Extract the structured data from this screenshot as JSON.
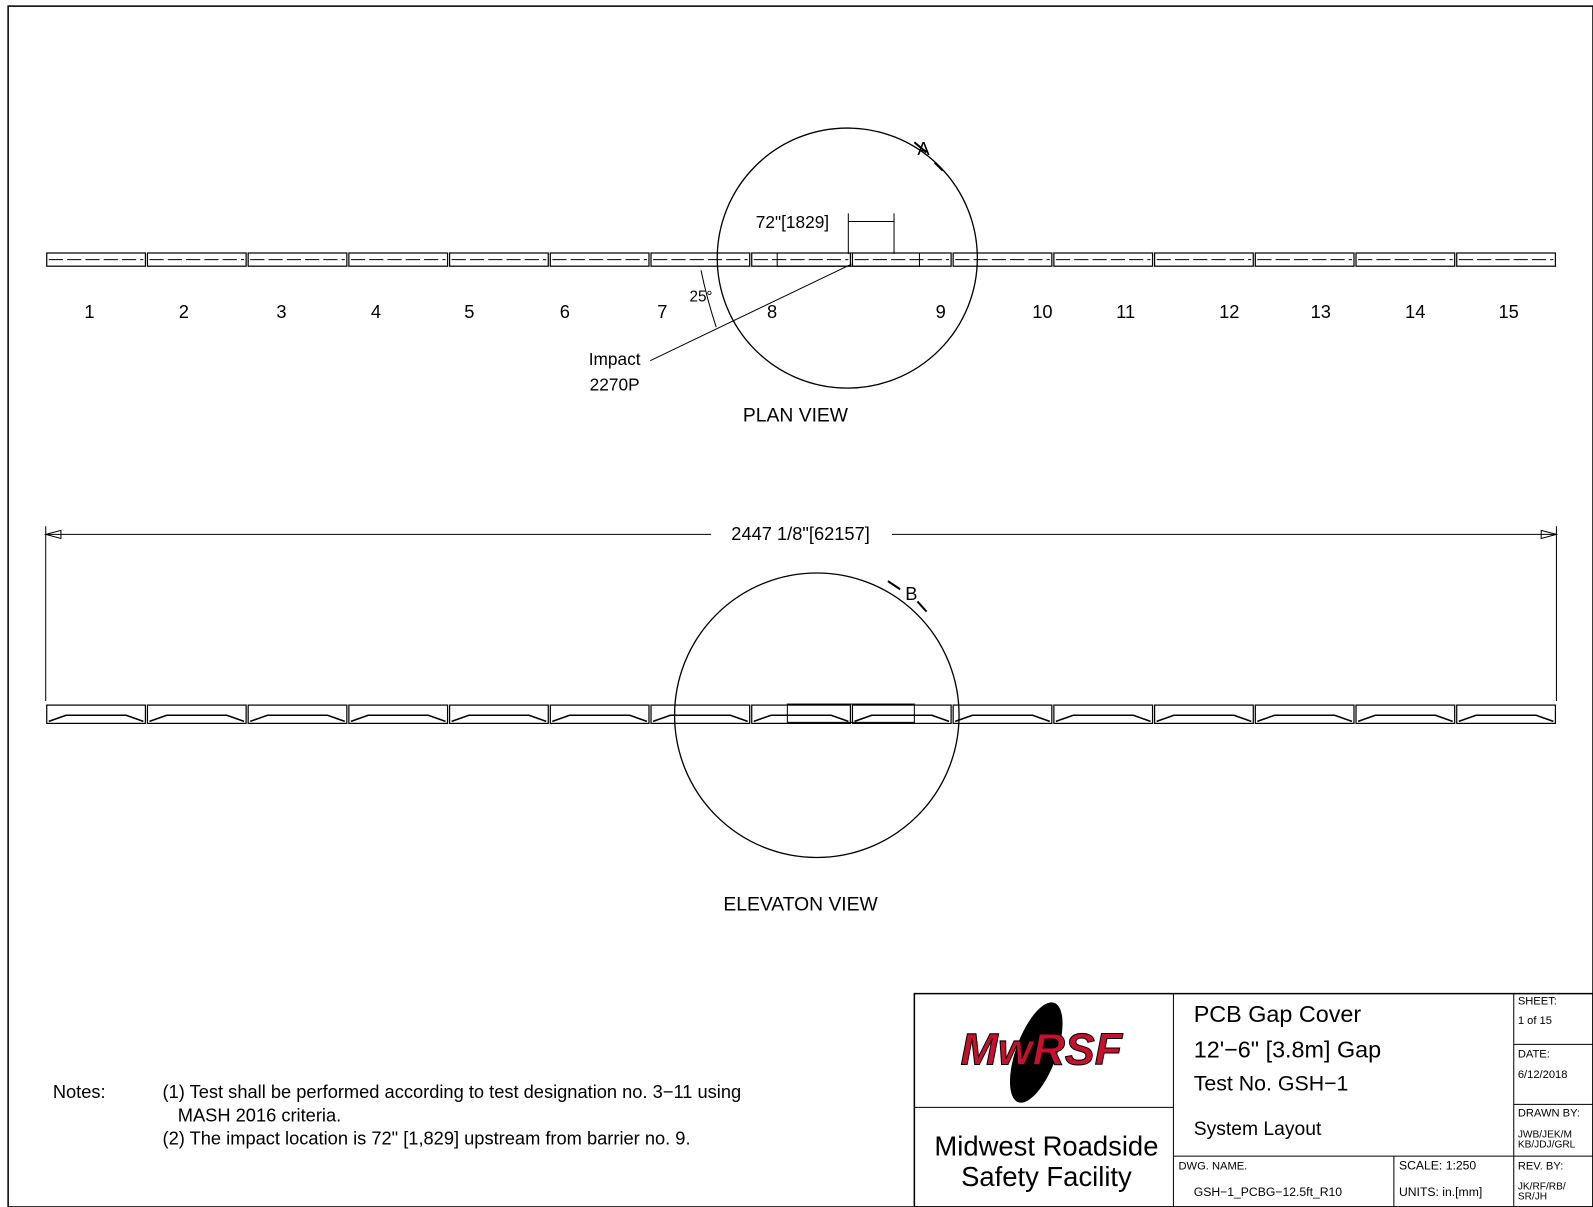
{
  "plan_view": {
    "label": "PLAN VIEW",
    "detail": "A",
    "dimension": "72\"[1829]",
    "angle": "25°",
    "impact": [
      "Impact",
      "2270P"
    ],
    "barrier_numbers": [
      "1",
      "2",
      "3",
      "4",
      "5",
      "6",
      "7",
      "8",
      "9",
      "10",
      "11",
      "12",
      "13",
      "14",
      "15"
    ]
  },
  "elevation_view": {
    "label": "ELEVATON VIEW",
    "detail": "B",
    "dimension": "2447 1/8\"[62157]"
  },
  "notes": {
    "prefix": "Notes:",
    "lines": [
      "(1) Test shall be performed according to test designation no. 3−11 using",
      "MASH 2016 criteria.",
      "(2) The impact location is 72\" [1,829] upstream from barrier no. 9."
    ]
  },
  "title_block": {
    "logo": "MwRSF",
    "organization": [
      "Midwest Roadside",
      "Safety Facility"
    ],
    "title": [
      "PCB Gap Cover",
      "12'−6\" [3.8m] Gap",
      "Test No. GSH−1"
    ],
    "subtitle": "System Layout",
    "dwg_name_label": "DWG. NAME.",
    "dwg_name": "GSH−1_PCBG−12.5ft_R10",
    "scale": "SCALE: 1:250",
    "units": "UNITS: in.[mm]",
    "sheet_label": "SHEET:",
    "sheet": "1 of 15",
    "date_label": "DATE:",
    "date": "6/12/2018",
    "drawn_by_label": "DRAWN BY:",
    "drawn_by": [
      "JWB/JEK/M",
      "KB/JDJ/GRL"
    ],
    "rev_by_label": "REV. BY:",
    "rev_by": [
      "JK/RF/RB/",
      "SR/JH"
    ]
  }
}
